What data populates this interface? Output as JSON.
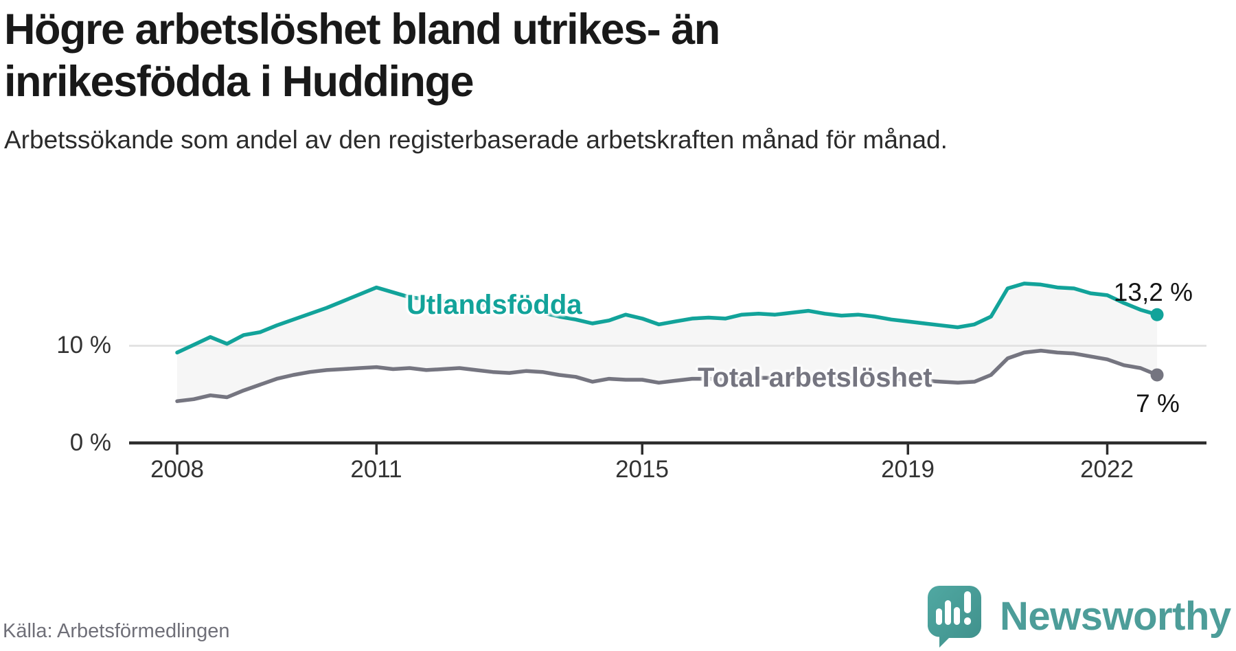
{
  "header": {
    "title": "Högre arbetslöshet bland utrikes- än inrikesfödda i Huddinge",
    "subtitle": "Arbetssökande som andel av den registerbaserade arbetskraften månad för månad."
  },
  "footer": {
    "source": "Källa: Arbetsförmedlingen",
    "brand": "Newsworthy"
  },
  "colors": {
    "series_foreign_born": "#12a39a",
    "series_total": "#757580",
    "fill_between": "#f6f6f6",
    "gridline": "#e3e3e3",
    "axis": "#2d2d2d",
    "end_label_text": "#141414",
    "logo_teal_light": "#50a8a2",
    "logo_teal_dark": "#3f908b"
  },
  "chart_data": {
    "type": "line",
    "title": "Högre arbetslöshet bland utrikes- än inrikesfödda i Huddinge",
    "xlabel": "",
    "ylabel": "Arbetssökande som andel av den registerbaserade arbetskraften",
    "x_unit": "decimal_year_quarterly",
    "x": [
      2008.0,
      2008.25,
      2008.5,
      2008.75,
      2009.0,
      2009.25,
      2009.5,
      2009.75,
      2010.0,
      2010.25,
      2010.5,
      2010.75,
      2011.0,
      2011.25,
      2011.5,
      2011.75,
      2012.0,
      2012.25,
      2012.5,
      2012.75,
      2013.0,
      2013.25,
      2013.5,
      2013.75,
      2014.0,
      2014.25,
      2014.5,
      2014.75,
      2015.0,
      2015.25,
      2015.5,
      2015.75,
      2016.0,
      2016.25,
      2016.5,
      2016.75,
      2017.0,
      2017.25,
      2017.5,
      2017.75,
      2018.0,
      2018.25,
      2018.5,
      2018.75,
      2019.0,
      2019.25,
      2019.5,
      2019.75,
      2020.0,
      2020.25,
      2020.5,
      2020.75,
      2021.0,
      2021.25,
      2021.5,
      2021.75,
      2022.0,
      2022.25,
      2022.5,
      2022.75
    ],
    "series": [
      {
        "name": "Utlandsfödda",
        "color": "#12a39a",
        "end_label": "13,2 %",
        "end_value": 13.2,
        "values": [
          9.3,
          10.1,
          10.9,
          10.2,
          11.1,
          11.4,
          12.1,
          12.7,
          13.3,
          13.9,
          14.6,
          15.3,
          16.0,
          15.5,
          15.0,
          14.8,
          14.6,
          14.5,
          14.3,
          14.0,
          13.9,
          13.8,
          13.4,
          13.0,
          12.7,
          12.3,
          12.6,
          13.2,
          12.8,
          12.2,
          12.5,
          12.8,
          12.9,
          12.8,
          13.2,
          13.3,
          13.2,
          13.4,
          13.6,
          13.3,
          13.1,
          13.2,
          13.0,
          12.7,
          12.5,
          12.3,
          12.1,
          11.9,
          12.2,
          13.0,
          15.9,
          16.4,
          16.3,
          16.0,
          15.9,
          15.4,
          15.2,
          14.4,
          13.7,
          13.2
        ]
      },
      {
        "name": "Total arbetslöshet",
        "color": "#757580",
        "end_label": "7 %",
        "end_value": 7.0,
        "values": [
          4.3,
          4.5,
          4.9,
          4.7,
          5.4,
          6.0,
          6.6,
          7.0,
          7.3,
          7.5,
          7.6,
          7.7,
          7.8,
          7.6,
          7.7,
          7.5,
          7.6,
          7.7,
          7.5,
          7.3,
          7.2,
          7.4,
          7.3,
          7.0,
          6.8,
          6.3,
          6.6,
          6.5,
          6.5,
          6.2,
          6.4,
          6.6,
          6.6,
          6.5,
          6.6,
          6.7,
          6.7,
          6.8,
          6.9,
          6.8,
          6.7,
          6.7,
          6.8,
          6.6,
          6.5,
          6.4,
          6.3,
          6.2,
          6.3,
          7.0,
          8.7,
          9.3,
          9.5,
          9.3,
          9.2,
          8.9,
          8.6,
          8.0,
          7.7,
          7.0
        ]
      }
    ],
    "fill_between_series": true,
    "x_ticks": [
      {
        "t": 2008,
        "label": "2008"
      },
      {
        "t": 2011,
        "label": "2011"
      },
      {
        "t": 2015,
        "label": "2015"
      },
      {
        "t": 2019,
        "label": "2019"
      },
      {
        "t": 2022,
        "label": "2022"
      }
    ],
    "y_ticks": [
      {
        "v": 0,
        "label": "0 %",
        "axis": true
      },
      {
        "v": 10,
        "label": "10 %",
        "grid": true
      }
    ],
    "ylim": [
      0,
      21
    ],
    "grid": "horizontal-only",
    "legend_position": "inline-labels"
  }
}
